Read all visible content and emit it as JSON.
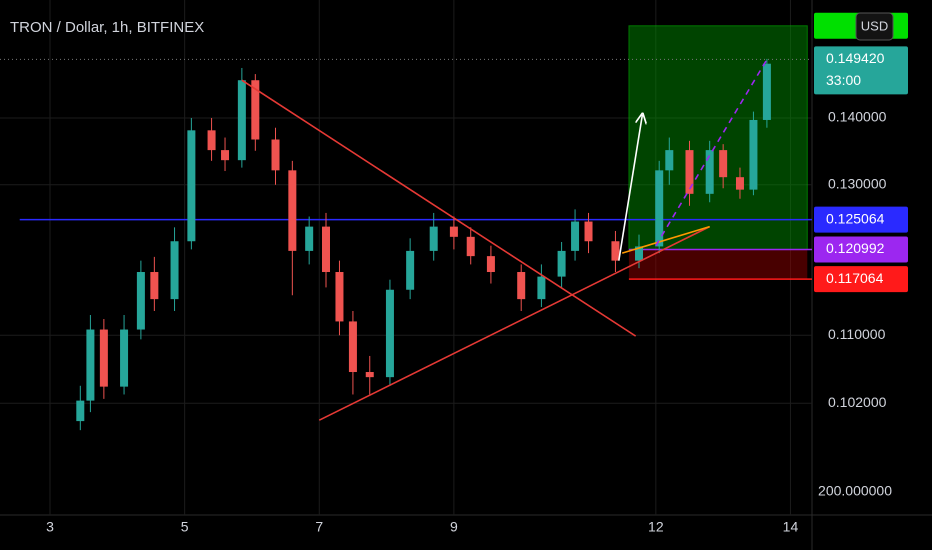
{
  "chart_data": {
    "type": "candlestick",
    "title": "TRON / Dollar, 1h, BITFINEX",
    "currency_button": "USD",
    "countdown": "33:00",
    "bottom_axis_label": "200.000000",
    "log_scale": true,
    "grid": true,
    "up_color": "#26a69a",
    "down_color": "#ef5350",
    "x": [
      3.45,
      3.6,
      3.8,
      4.1,
      4.35,
      4.55,
      4.85,
      5.1,
      5.4,
      5.6,
      5.85,
      6.05,
      6.35,
      6.6,
      6.85,
      7.1,
      7.3,
      7.5,
      7.75,
      8.05,
      8.35,
      8.7,
      9.0,
      9.25,
      9.55,
      10.0,
      10.3,
      10.6,
      10.8,
      11.0,
      11.4,
      11.75,
      12.05,
      12.2,
      12.5,
      12.8,
      13.0,
      13.25,
      13.45,
      13.65
    ],
    "open": [
      0.1,
      0.1023,
      0.1107,
      0.1039,
      0.1107,
      0.118,
      0.1145,
      0.1221,
      0.1381,
      0.1351,
      0.1336,
      0.146,
      0.1367,
      0.1321,
      0.1208,
      0.1241,
      0.118,
      0.1117,
      0.1056,
      0.105,
      0.1157,
      0.1208,
      0.1241,
      0.1227,
      0.1201,
      0.118,
      0.1145,
      0.1174,
      0.1208,
      0.1248,
      0.1221,
      0.1195,
      0.1214,
      0.1321,
      0.1351,
      0.1287,
      0.1351,
      0.1311,
      0.1293,
      0.1397
    ],
    "high": [
      0.104,
      0.1125,
      0.112,
      0.1125,
      0.1195,
      0.12,
      0.124,
      0.14,
      0.14,
      0.137,
      0.148,
      0.147,
      0.1385,
      0.1335,
      0.1255,
      0.126,
      0.1195,
      0.113,
      0.1075,
      0.117,
      0.1225,
      0.126,
      0.1255,
      0.124,
      0.1215,
      0.119,
      0.119,
      0.122,
      0.1265,
      0.126,
      0.1235,
      0.123,
      0.1335,
      0.137,
      0.1365,
      0.1365,
      0.136,
      0.1325,
      0.141,
      0.1495
    ],
    "low": [
      0.099,
      0.101,
      0.1025,
      0.103,
      0.1095,
      0.113,
      0.113,
      0.121,
      0.1335,
      0.132,
      0.1325,
      0.135,
      0.13,
      0.115,
      0.119,
      0.116,
      0.11,
      0.103,
      0.103,
      0.104,
      0.1145,
      0.1195,
      0.121,
      0.119,
      0.1165,
      0.113,
      0.1135,
      0.116,
      0.1195,
      0.1205,
      0.118,
      0.1185,
      0.1205,
      0.13,
      0.127,
      0.1275,
      0.1295,
      0.128,
      0.1285,
      0.1385
    ],
    "close": [
      0.1023,
      0.1107,
      0.1039,
      0.1107,
      0.118,
      0.1145,
      0.1221,
      0.1381,
      0.1351,
      0.1336,
      0.146,
      0.1367,
      0.1321,
      0.1208,
      0.1241,
      0.118,
      0.1117,
      0.1056,
      0.105,
      0.1157,
      0.1208,
      0.1241,
      0.1227,
      0.1201,
      0.118,
      0.1145,
      0.1174,
      0.1208,
      0.1248,
      0.1221,
      0.1195,
      0.1214,
      0.1321,
      0.1351,
      0.1287,
      0.1351,
      0.1311,
      0.1293,
      0.1397,
      0.1487
    ],
    "xlim": [
      2.257,
      14.32
    ],
    "ylim": [
      0.0901,
      0.1596
    ],
    "xticks": [
      3,
      5,
      7,
      9,
      12,
      14
    ],
    "yticks": [
      {
        "value": 0.102,
        "label": "0.102000"
      },
      {
        "value": 0.11,
        "label": "0.110000"
      },
      {
        "value": 0.13,
        "label": "0.130000"
      },
      {
        "value": 0.14,
        "label": "0.140000"
      }
    ],
    "price_lines": [
      {
        "value": 0.14942,
        "label": "0.149420",
        "color": "#26a69a",
        "from": 2.257
      },
      {
        "value": 0.125064,
        "label": "0.125064",
        "color": "#2a2aff",
        "from": 2.55
      },
      {
        "value": 0.120992,
        "label": "0.120992",
        "color": "#9c27f0",
        "from": 11.6
      },
      {
        "value": 0.117064,
        "label": "0.117064",
        "color": "#ff1a1a",
        "from": 11.6
      }
    ],
    "position": {
      "from": 11.6,
      "to": 14.25,
      "entry": 0.120992,
      "target": 0.1551,
      "stop": 0.117064
    },
    "drawings": [
      {
        "color": "#e53935",
        "points": [
          [
            5.85,
            0.146
          ],
          [
            11.7,
            0.1099
          ]
        ]
      },
      {
        "color": "#e53935",
        "points": [
          [
            7.0,
            0.1001
          ],
          [
            12.8,
            0.1241
          ]
        ]
      },
      {
        "color": "#ff9800",
        "points": [
          [
            11.5,
            0.1205
          ],
          [
            12.8,
            0.1241
          ]
        ]
      },
      {
        "color": "#9c27f0",
        "dashed": true,
        "points": [
          [
            12.0,
            0.1215
          ],
          [
            13.65,
            0.1494
          ]
        ]
      },
      {
        "color": "#ffffff",
        "arrow": true,
        "points": [
          [
            11.45,
            0.1195
          ],
          [
            11.8,
            0.1405
          ]
        ]
      }
    ]
  }
}
